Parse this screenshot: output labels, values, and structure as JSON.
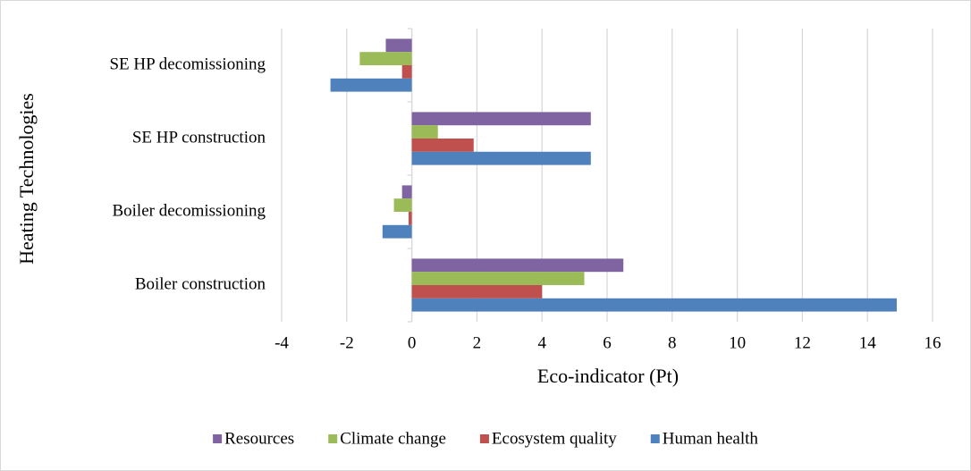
{
  "chart_data": {
    "type": "hbar",
    "xlabel": "Eco-indicator (Pt)",
    "ylabel": "Heating Technologies",
    "categories": [
      "Boiler construction",
      "Boiler decomissioning",
      "SE HP construction",
      "SE HP decomissioning"
    ],
    "series": [
      {
        "name": "Resources",
        "color": "#8064a2",
        "values": [
          6.5,
          -0.3,
          5.5,
          -0.8
        ]
      },
      {
        "name": "Climate change",
        "color": "#9bbb59",
        "values": [
          5.3,
          -0.55,
          0.8,
          -1.6
        ]
      },
      {
        "name": "Ecosystem quality",
        "color": "#c0504d",
        "values": [
          4.0,
          -0.1,
          1.9,
          -0.3
        ]
      },
      {
        "name": "Human health",
        "color": "#4f81bd",
        "values": [
          14.9,
          -0.9,
          5.5,
          -2.5
        ]
      }
    ],
    "xlim": [
      -4,
      16
    ],
    "xticks": [
      -4,
      -2,
      0,
      2,
      4,
      6,
      8,
      10,
      12,
      14,
      16
    ],
    "grid": true,
    "legend": "bottom"
  }
}
